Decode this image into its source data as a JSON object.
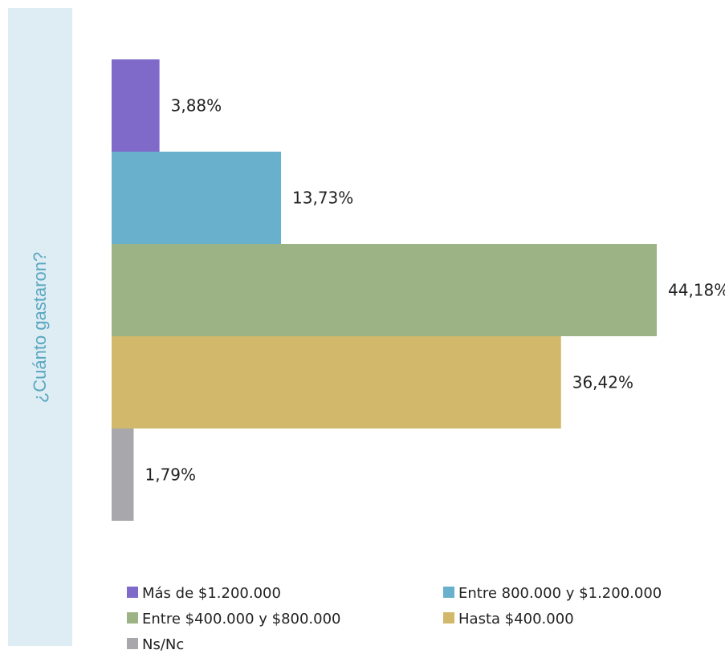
{
  "side_label": "¿Cuánto gastaron?",
  "chart_data": {
    "type": "bar",
    "orientation": "horizontal",
    "categories": [
      "Más de $1.200.000",
      "Entre 800.000 y $1.200.000",
      "Entre $400.000 y $800.000",
      "Hasta $400.000",
      "Ns/Nc"
    ],
    "values": [
      3.88,
      13.73,
      44.18,
      36.42,
      1.79
    ],
    "value_labels": [
      "3,88%",
      "13,73%",
      "44,18%",
      "36,42%",
      "1,79%"
    ],
    "colors": [
      "#7f6ac9",
      "#68b0cb",
      "#9cb385",
      "#d2b86a",
      "#a8a7ab"
    ],
    "legend": [
      "Más de $1.200.000",
      "Entre 800.000 y $1.200.000",
      "Entre $400.000 y $800.000",
      "Hasta $400.000",
      "Ns/Nc"
    ],
    "legend_position": "bottom",
    "grid": false,
    "xlim": [
      0,
      44.18
    ]
  }
}
